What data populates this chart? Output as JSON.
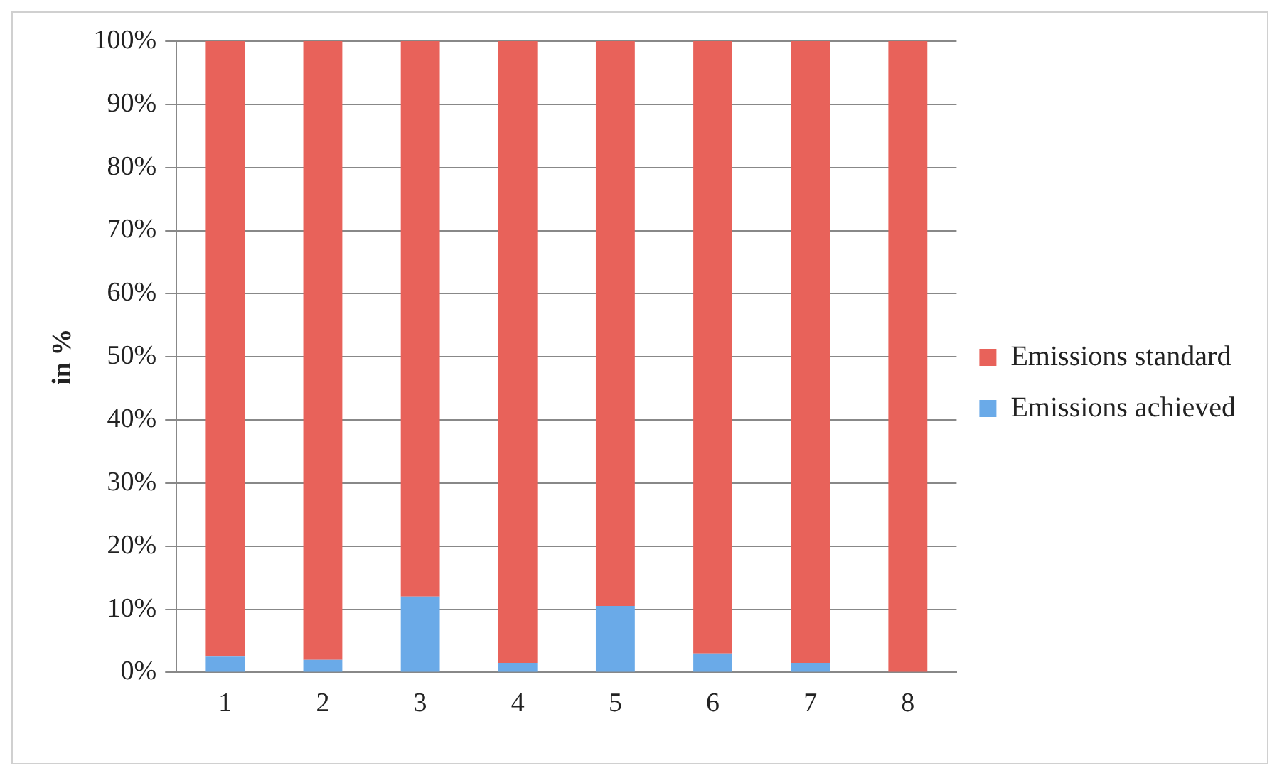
{
  "chart_data": {
    "type": "bar",
    "stacked": true,
    "ylabel": "in %",
    "categories": [
      "1",
      "2",
      "3",
      "4",
      "5",
      "6",
      "7",
      "8"
    ],
    "series": [
      {
        "name": "Emissions achieved",
        "color": "#6aaae8",
        "values": [
          2.5,
          2,
          12,
          1.5,
          10.5,
          3,
          1.5,
          0
        ]
      },
      {
        "name": "Emissions standard",
        "color": "#e8625a",
        "values": [
          97.5,
          98,
          88,
          98.5,
          89.5,
          97,
          98.5,
          100
        ]
      }
    ],
    "ylim": [
      0,
      100
    ],
    "yticks": [
      {
        "value": 0,
        "label": "0%"
      },
      {
        "value": 10,
        "label": "10%"
      },
      {
        "value": 20,
        "label": "20%"
      },
      {
        "value": 30,
        "label": "30%"
      },
      {
        "value": 40,
        "label": "40%"
      },
      {
        "value": 50,
        "label": "50%"
      },
      {
        "value": 60,
        "label": "60%"
      },
      {
        "value": 70,
        "label": "70%"
      },
      {
        "value": 80,
        "label": "80%"
      },
      {
        "value": 90,
        "label": "90%"
      },
      {
        "value": 100,
        "label": "100%"
      }
    ],
    "grid": "y",
    "legend": "right"
  }
}
